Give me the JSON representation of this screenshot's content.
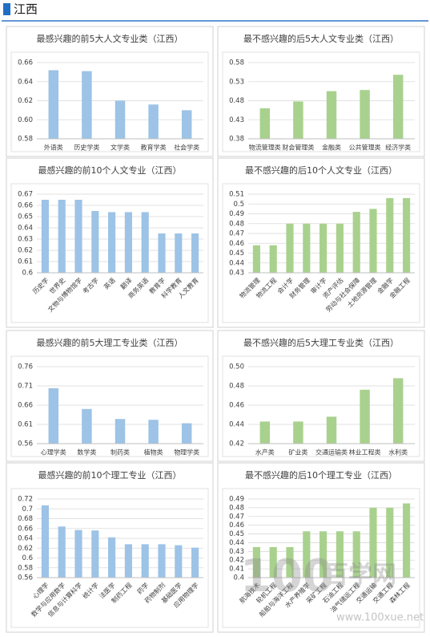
{
  "header": {
    "title": "江西"
  },
  "watermark": {
    "logo": "100",
    "name": "百学网",
    "url": "www.100xue.net"
  },
  "chart_data": [
    {
      "type": "bar",
      "title": "最感兴趣的前5大人文专业类（江西）",
      "color": "#9dc3e6",
      "grid": true,
      "categories": [
        "外语类",
        "历史学类",
        "文学类",
        "教育学类",
        "社会学类"
      ],
      "values": [
        0.652,
        0.651,
        0.62,
        0.616,
        0.61
      ],
      "ylim": [
        0.58,
        0.66
      ],
      "yticks": [
        0.58,
        {
          "value": 0.6,
          "label": "0.60"
        },
        0.62,
        0.64,
        0.66
      ]
    },
    {
      "type": "bar",
      "title": "最不感兴趣的后5大人文专业类（江西）",
      "color": "#a9d18e",
      "grid": true,
      "categories": [
        "物流管理类",
        "财会管理类",
        "金融类",
        "公共管理类",
        "经济学类"
      ],
      "values": [
        0.46,
        0.478,
        0.505,
        0.508,
        0.548
      ],
      "ylim": [
        0.38,
        0.58
      ],
      "yticks": [
        0.38,
        0.43,
        0.48,
        0.53,
        0.58
      ]
    },
    {
      "type": "bar",
      "title": "最感兴趣的前10个人文专业（江西）",
      "color": "#9dc3e6",
      "grid": true,
      "categories": [
        "历史学",
        "世界史",
        "文物与博物馆学",
        "考古学",
        "英语",
        "翻译",
        "商务英语",
        "教育学",
        "科学教育",
        "人文教育"
      ],
      "values": [
        0.665,
        0.665,
        0.665,
        0.655,
        0.654,
        0.654,
        0.654,
        0.635,
        0.635,
        0.635
      ],
      "ylim": [
        0.6,
        0.67
      ],
      "yticks": [
        0.6,
        0.61,
        0.62,
        0.63,
        0.64,
        0.65,
        0.66,
        0.67
      ]
    },
    {
      "type": "bar",
      "title": "最不感兴趣的后10个人文专业（江西）",
      "color": "#a9d18e",
      "grid": true,
      "categories": [
        "物流管理",
        "物流工程",
        "会计学",
        "财务管理",
        "审计学",
        "资产评估",
        "劳动与社会保障",
        "土地资源管理",
        "金融学",
        "金融工程"
      ],
      "values": [
        0.458,
        0.458,
        0.48,
        0.48,
        0.48,
        0.48,
        0.492,
        0.495,
        0.506,
        0.506
      ],
      "ylim": [
        0.43,
        0.51
      ],
      "yticks": [
        0.43,
        0.44,
        0.45,
        0.46,
        0.47,
        0.48,
        0.49,
        0.5,
        0.51
      ]
    },
    {
      "type": "bar",
      "title": "最感兴趣的前5大理工专业类（江西）",
      "color": "#9dc3e6",
      "grid": true,
      "categories": [
        "心理学类",
        "数学类",
        "制药类",
        "植物类",
        "物理学类"
      ],
      "values": [
        0.704,
        0.65,
        0.624,
        0.622,
        0.613
      ],
      "ylim": [
        0.56,
        0.76
      ],
      "yticks": [
        0.56,
        0.61,
        0.66,
        0.71,
        0.76
      ]
    },
    {
      "type": "bar",
      "title": "最不感兴趣的后5大理工专业类（江西）",
      "color": "#a9d18e",
      "grid": true,
      "categories": [
        "水产类",
        "矿业类",
        "交通运输类",
        "林业工程类",
        "水利类"
      ],
      "values": [
        0.443,
        0.443,
        0.448,
        0.476,
        0.488
      ],
      "ylim": [
        0.42,
        0.5
      ],
      "yticks": [
        0.42,
        0.44,
        0.46,
        0.48,
        {
          "value": 0.5,
          "label": "0.50"
        }
      ]
    },
    {
      "type": "bar",
      "title": "最感兴趣的前10个理工专业（江西）",
      "color": "#9dc3e6",
      "grid": true,
      "categories": [
        "心理学",
        "数学与应用数学",
        "信息与计算科学",
        "统计学",
        "法医学",
        "制药工程",
        "药学",
        "药物制剂",
        "基础医学",
        "应用物理学"
      ],
      "values": [
        0.707,
        0.664,
        0.657,
        0.656,
        0.642,
        0.628,
        0.628,
        0.628,
        0.626,
        0.621
      ],
      "ylim": [
        0.56,
        0.72
      ],
      "yticks": [
        0.56,
        0.58,
        0.6,
        0.62,
        0.64,
        0.66,
        0.68,
        0.7,
        0.72
      ]
    },
    {
      "type": "bar",
      "title": "最不感兴趣的后10个理工专业（江西）",
      "color": "#a9d18e",
      "grid": true,
      "categories": [
        "航海技术",
        "轮机工程",
        "船舶与海洋工程",
        "水产养殖学",
        "采矿工程",
        "石油工程",
        "油气储运工程",
        "交通运输",
        "交通工程",
        "森林工程"
      ],
      "values": [
        0.435,
        0.435,
        0.435,
        0.453,
        0.453,
        0.453,
        0.453,
        0.48,
        0.48,
        0.485
      ],
      "ylim": [
        0.4,
        0.49
      ],
      "yticks": [
        0.4,
        0.41,
        0.42,
        0.43,
        0.44,
        0.45,
        0.46,
        0.47,
        0.48,
        0.49
      ]
    }
  ]
}
